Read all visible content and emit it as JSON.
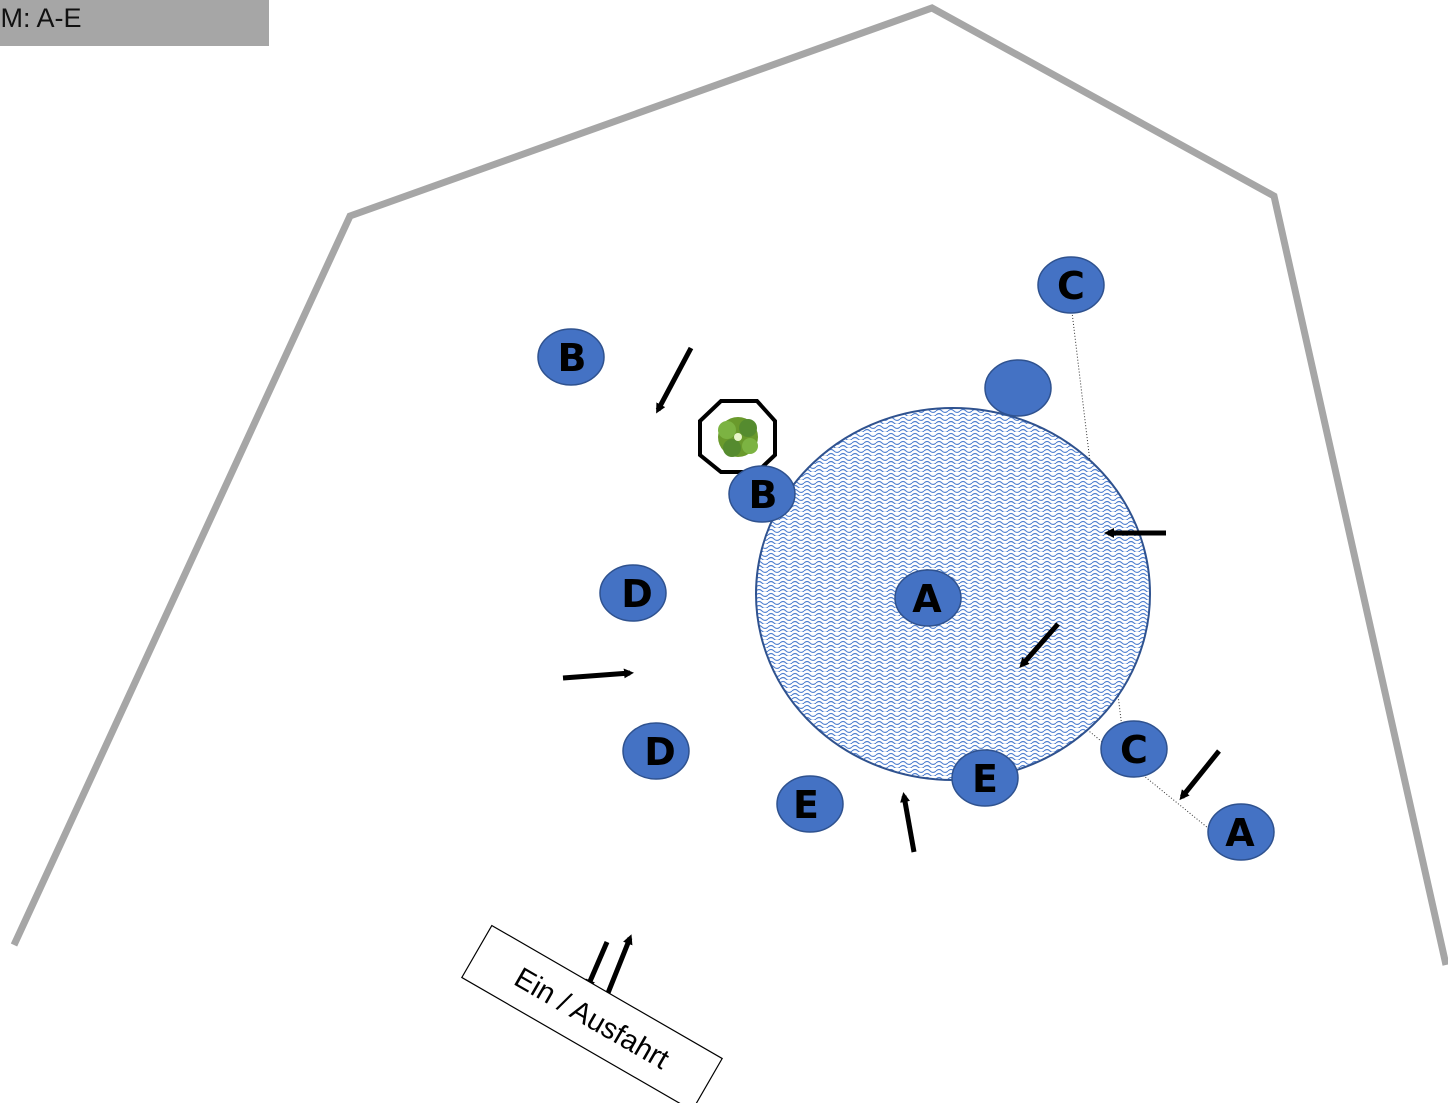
{
  "title": "e M: A-E",
  "colors": {
    "boundary": "#a6a6a6",
    "marker_fill": "#4472c4",
    "marker_stroke": "#2f528f",
    "pond_stroke": "#2f528f",
    "pond_pattern": "#4f7fd0",
    "arrow": "#000000"
  },
  "markers": {
    "c_top": "C",
    "b_left": "B",
    "b_pond": "B",
    "d_upper": "D",
    "d_lower": "D",
    "a_center": "A",
    "c_lower": "C",
    "e_pond": "E",
    "e_left": "E",
    "a_right": "A",
    "unlabeled": ""
  },
  "exit": {
    "label": "Ein / Ausfahrt"
  },
  "icons": {
    "tree": "tree-icon",
    "arrow": "arrow-icon"
  }
}
